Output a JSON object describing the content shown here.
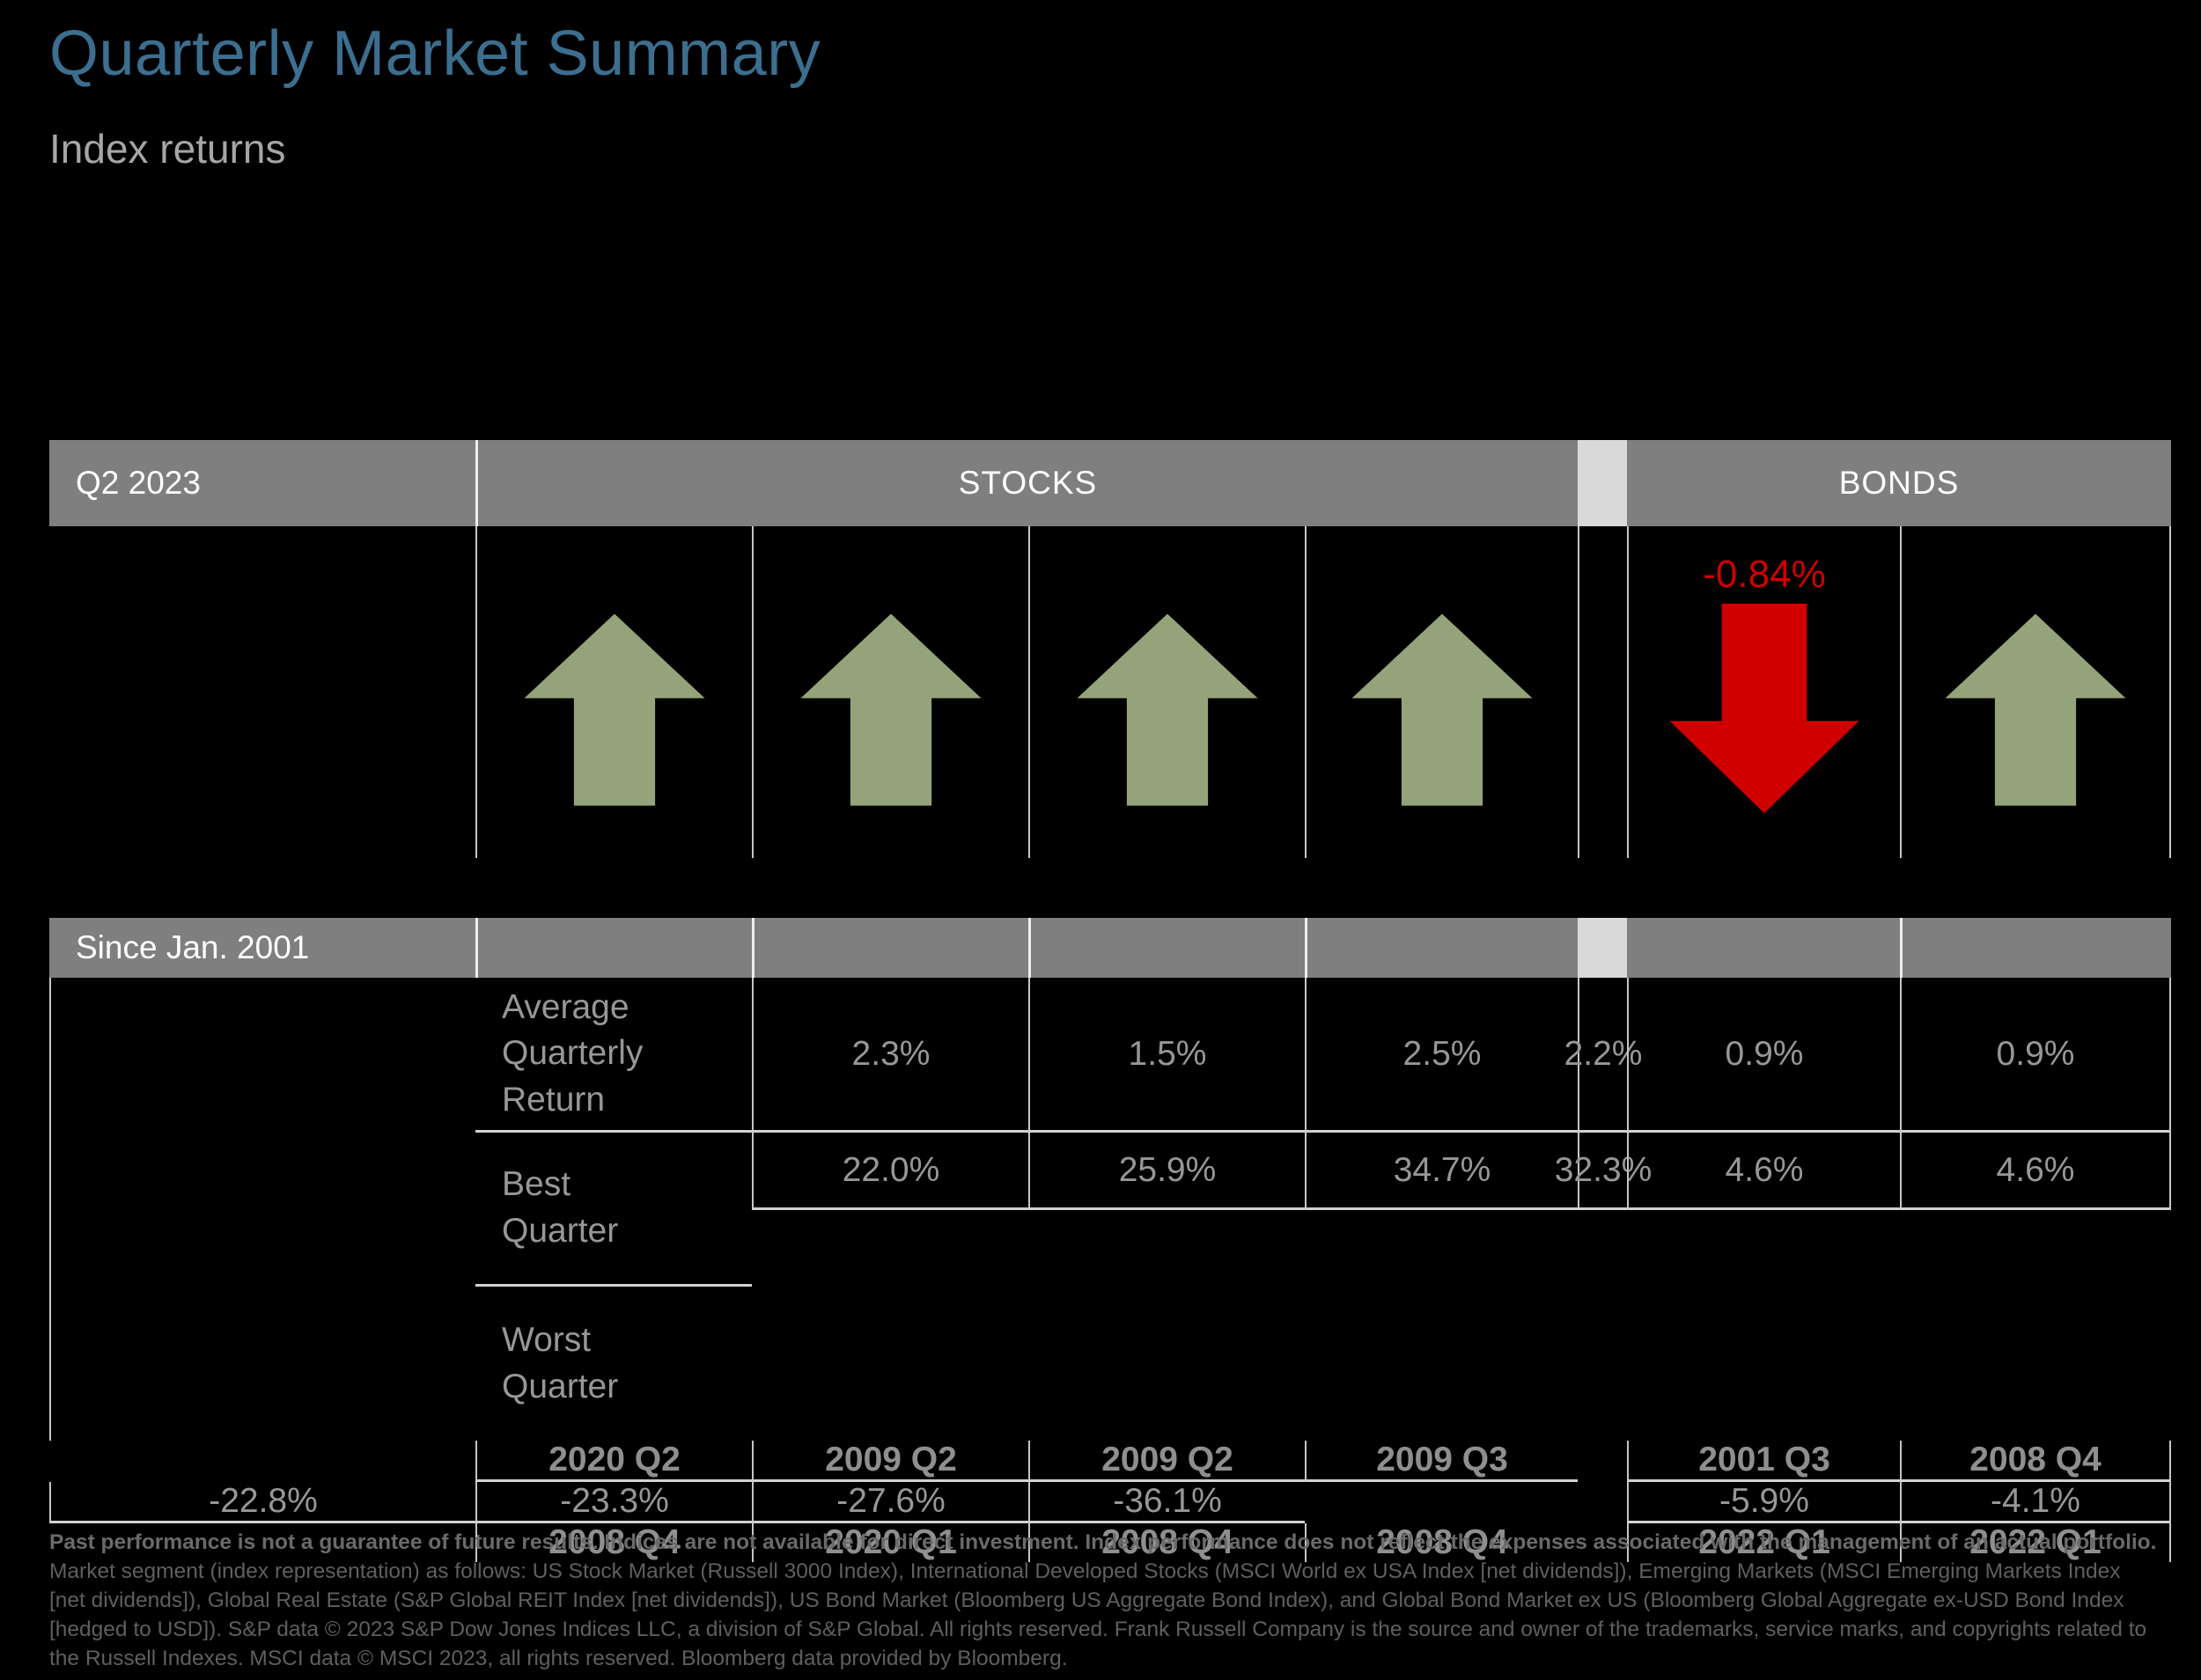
{
  "header": {
    "title": "Quarterly Market Summary",
    "subtitle": "Index returns"
  },
  "period_bar": {
    "period": "Q2 2023",
    "stocks": "STOCKS",
    "bonds": "BONDS"
  },
  "arrows": {
    "bond_down_label": "-0.84%",
    "directions": [
      "up",
      "up",
      "up",
      "up",
      "down",
      "up"
    ]
  },
  "since_bar": {
    "label": "Since Jan. 2001"
  },
  "table": {
    "row_labels": {
      "avg": [
        "Average",
        "Quarterly Return"
      ],
      "best": [
        "Best",
        "Quarter"
      ],
      "worst": [
        "Worst",
        "Quarter"
      ]
    },
    "avg": [
      "2.3%",
      "1.5%",
      "2.5%",
      "2.2%",
      "0.9%",
      "0.9%"
    ],
    "best_pct": [
      "22.0%",
      "25.9%",
      "34.7%",
      "32.3%",
      "4.6%",
      "4.6%"
    ],
    "best_qtr": [
      "2020 Q2",
      "2009 Q2",
      "2009 Q2",
      "2009 Q3",
      "2001 Q3",
      "2008 Q4"
    ],
    "worst_pct": [
      "-22.8%",
      "-23.3%",
      "-27.6%",
      "-36.1%",
      "-5.9%",
      "-4.1%"
    ],
    "worst_qtr": [
      "2008 Q4",
      "2020 Q1",
      "2008 Q4",
      "2008 Q4",
      "2022 Q1",
      "2022 Q1"
    ]
  },
  "footer": {
    "bold": "Past performance is not a guarantee of future results. Indices are not available for direct investment. Index performance does not reflect the expenses associated with the management of an actual portfolio.",
    "rest": "Market segment (index representation) as follows: US Stock Market (Russell 3000 Index), International Developed Stocks (MSCI World ex USA Index [net dividends]), Emerging Markets (MSCI Emerging Markets Index [net dividends]), Global Real Estate (S&P Global REIT Index [net dividends]), US Bond Market (Bloomberg US Aggregate Bond Index), and Global Bond Market ex US (Bloomberg Global Aggregate ex-USD Bond Index [hedged to USD]). S&P data © 2023 S&P Dow Jones Indices LLC, a division of S&P Global. All rights reserved. Frank Russell Company is the source and owner of the trademarks, service marks, and copyrights related to the Russell Indexes. MSCI data © MSCI 2023, all rights reserved. Bloomberg data provided by Bloomberg."
  },
  "colors": {
    "title_blue": "#3C6E8F",
    "bar_gray": "#7F7F7F",
    "gap_strip": "#D9D9D9",
    "arrow_green": "#95A37A",
    "arrow_red": "#D00000",
    "value_gray": "#979797",
    "background": "#000000"
  },
  "chart_data": {
    "type": "table",
    "title": "Quarterly Market Summary — Index returns",
    "period": "Q2 2023",
    "columns_groups": [
      "Stocks",
      "Stocks",
      "Stocks",
      "Stocks",
      "Bonds",
      "Bonds"
    ],
    "q2_2023_direction": [
      "up",
      "up",
      "up",
      "up",
      "down",
      "up"
    ],
    "q2_2023_labels": [
      "",
      "",
      "",
      "",
      "-0.84%",
      ""
    ],
    "since_jan_2001": {
      "average_quarterly_return": [
        "2.3%",
        "1.5%",
        "2.5%",
        "2.2%",
        "0.9%",
        "0.9%"
      ],
      "best_quarter_return": [
        "22.0%",
        "25.9%",
        "34.7%",
        "32.3%",
        "4.6%",
        "4.6%"
      ],
      "best_quarter_period": [
        "2020 Q2",
        "2009 Q2",
        "2009 Q2",
        "2009 Q3",
        "2001 Q3",
        "2008 Q4"
      ],
      "worst_quarter_return": [
        "-22.8%",
        "-23.3%",
        "-27.6%",
        "-36.1%",
        "-5.9%",
        "-4.1%"
      ],
      "worst_quarter_period": [
        "2008 Q4",
        "2020 Q1",
        "2008 Q4",
        "2008 Q4",
        "2022 Q1",
        "2022 Q1"
      ]
    }
  }
}
